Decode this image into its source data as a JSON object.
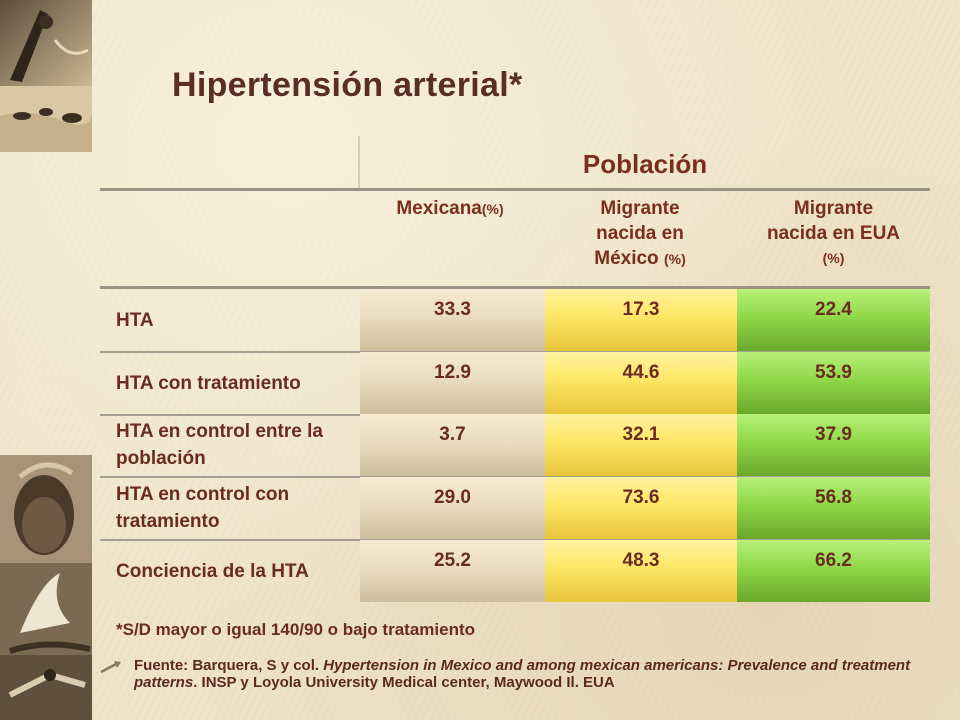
{
  "title": "Hipertensión arterial*",
  "table": {
    "group_header": "Población",
    "columns": [
      {
        "label": "Mexicana",
        "unit": "(%)"
      },
      {
        "label_lines": [
          "Migrante",
          "nacida en"
        ],
        "label_last": "México",
        "unit": "(%)"
      },
      {
        "label_lines": [
          "Migrante",
          "nacida en EUA"
        ],
        "unit": "(%)"
      }
    ],
    "rows": [
      {
        "label": "HTA",
        "values": [
          "33.3",
          "17.3",
          "22.4"
        ]
      },
      {
        "label": "HTA con tratamiento",
        "values": [
          "12.9",
          "44.6",
          "53.9"
        ]
      },
      {
        "label": "HTA en control entre la población",
        "values": [
          "3.7",
          "32.1",
          "37.9"
        ]
      },
      {
        "label": "HTA en control con tratamiento",
        "values": [
          "29.0",
          "73.6",
          "56.8"
        ]
      },
      {
        "label": "Conciencia de la HTA",
        "values": [
          "25.2",
          "48.3",
          "66.2"
        ]
      }
    ]
  },
  "note": "*S/D mayor o igual 140/90 o bajo tratamiento",
  "source": {
    "prefix": "Fuente: Barquera, S y col. ",
    "italic": "Hypertension in Mexico and among mexican americans: Prevalence and treatment patterns",
    "suffix": ". INSP y Loyola University Medical center, Maywood Il. EUA"
  },
  "colors": {
    "title": "#5a2f23",
    "header": "#7a2e1e",
    "col_mexicana": "#e9dcc0",
    "col_migrante_mexico": "#ffe86a",
    "col_migrante_eua": "#8fd848"
  },
  "icons": [
    "decorative-photo",
    "bullet-arrow-icon"
  ]
}
